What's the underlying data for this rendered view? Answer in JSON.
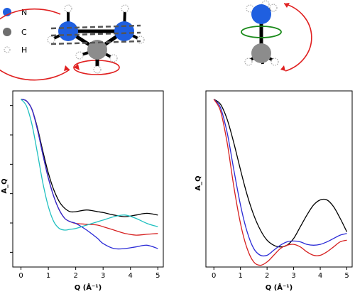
{
  "legend": {
    "items": [
      {
        "label": "N",
        "color": "#1f5fe0"
      },
      {
        "label": "C",
        "color": "#777777"
      },
      {
        "label": "H",
        "color": "#ffffff"
      }
    ]
  },
  "chart_data": [
    {
      "type": "line",
      "xlabel": "Q (Å⁻¹)",
      "ylabel": "A_Q",
      "xlim": [
        -0.3,
        5.2
      ],
      "ylim": [
        0,
        1.05
      ],
      "xticks": [
        "0",
        "1",
        "2",
        "3",
        "4",
        "5"
      ],
      "yticks_count": 6,
      "series": [
        {
          "color": "#000000",
          "x": [
            0,
            0.2,
            0.4,
            0.6,
            0.8,
            1.0,
            1.2,
            1.4,
            1.6,
            1.8,
            2.0,
            2.4,
            2.8,
            3.0,
            3.4,
            3.8,
            4.2,
            4.6,
            5.0
          ],
          "y": [
            1.0,
            0.99,
            0.94,
            0.83,
            0.69,
            0.56,
            0.46,
            0.39,
            0.35,
            0.33,
            0.33,
            0.34,
            0.33,
            0.325,
            0.31,
            0.3,
            0.31,
            0.32,
            0.31
          ]
        },
        {
          "color": "#d62020",
          "x": [
            0,
            0.2,
            0.4,
            0.6,
            0.8,
            1.0,
            1.2,
            1.4,
            1.6,
            1.8,
            2.0,
            2.4,
            2.8,
            3.0,
            3.4,
            3.8,
            4.2,
            4.6,
            5.0
          ],
          "y": [
            1.0,
            0.99,
            0.94,
            0.82,
            0.67,
            0.53,
            0.42,
            0.34,
            0.29,
            0.27,
            0.26,
            0.255,
            0.25,
            0.24,
            0.22,
            0.2,
            0.19,
            0.195,
            0.2
          ]
        },
        {
          "color": "#2a2ad6",
          "x": [
            0,
            0.2,
            0.4,
            0.6,
            0.8,
            1.0,
            1.2,
            1.4,
            1.6,
            1.8,
            2.0,
            2.4,
            2.8,
            3.0,
            3.4,
            3.8,
            4.2,
            4.6,
            5.0
          ],
          "y": [
            1.0,
            0.99,
            0.94,
            0.82,
            0.67,
            0.53,
            0.42,
            0.34,
            0.29,
            0.27,
            0.26,
            0.22,
            0.17,
            0.14,
            0.11,
            0.11,
            0.12,
            0.13,
            0.11
          ]
        },
        {
          "color": "#20c0c0",
          "x": [
            0,
            0.2,
            0.4,
            0.6,
            0.8,
            1.0,
            1.2,
            1.4,
            1.6,
            1.8,
            2.0,
            2.4,
            2.8,
            3.0,
            3.4,
            3.8,
            4.2,
            4.6,
            5.0
          ],
          "y": [
            1.0,
            0.96,
            0.85,
            0.68,
            0.5,
            0.36,
            0.27,
            0.23,
            0.22,
            0.225,
            0.23,
            0.25,
            0.27,
            0.28,
            0.3,
            0.31,
            0.29,
            0.26,
            0.24
          ]
        }
      ]
    },
    {
      "type": "line",
      "xlabel": "Q (Å⁻¹)",
      "ylabel": "A_Q",
      "xlim": [
        -0.3,
        5.2
      ],
      "ylim": [
        0,
        1.05
      ],
      "xticks": [
        "0",
        "1",
        "2",
        "3",
        "4",
        "5"
      ],
      "yticks_count": 0,
      "series": [
        {
          "color": "#000000",
          "x": [
            0,
            0.25,
            0.5,
            0.75,
            1.0,
            1.25,
            1.5,
            1.75,
            2.0,
            2.25,
            2.5,
            2.75,
            3.0,
            3.25,
            3.5,
            3.75,
            4.0,
            4.25,
            4.5,
            4.75,
            5.0
          ],
          "y": [
            1.0,
            0.97,
            0.88,
            0.74,
            0.58,
            0.43,
            0.31,
            0.22,
            0.16,
            0.13,
            0.12,
            0.13,
            0.17,
            0.24,
            0.31,
            0.37,
            0.4,
            0.4,
            0.36,
            0.29,
            0.21
          ]
        },
        {
          "color": "#2a2ad6",
          "x": [
            0,
            0.25,
            0.5,
            0.75,
            1.0,
            1.25,
            1.5,
            1.75,
            2.0,
            2.25,
            2.5,
            2.75,
            3.0,
            3.25,
            3.5,
            3.75,
            4.0,
            4.25,
            4.5,
            4.75,
            5.0
          ],
          "y": [
            1.0,
            0.95,
            0.8,
            0.58,
            0.37,
            0.21,
            0.11,
            0.07,
            0.07,
            0.1,
            0.13,
            0.15,
            0.155,
            0.15,
            0.135,
            0.13,
            0.135,
            0.15,
            0.17,
            0.19,
            0.2
          ]
        },
        {
          "color": "#d62020",
          "x": [
            0,
            0.25,
            0.5,
            0.75,
            1.0,
            1.25,
            1.5,
            1.75,
            2.0,
            2.25,
            2.5,
            2.75,
            3.0,
            3.25,
            3.5,
            3.75,
            4.0,
            4.25,
            4.5,
            4.75,
            5.0
          ],
          "y": [
            1.0,
            0.93,
            0.74,
            0.48,
            0.26,
            0.11,
            0.03,
            0.01,
            0.03,
            0.07,
            0.11,
            0.13,
            0.135,
            0.12,
            0.09,
            0.07,
            0.07,
            0.09,
            0.12,
            0.15,
            0.16
          ]
        }
      ]
    }
  ]
}
